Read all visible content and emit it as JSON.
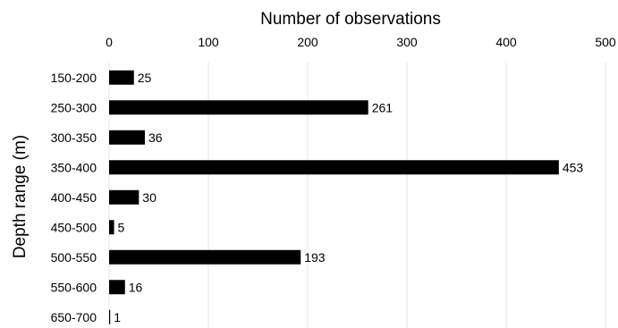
{
  "chart_data": {
    "type": "bar",
    "orientation": "horizontal",
    "title": "",
    "xlabel": "Number of observations",
    "ylabel": "Depth range (m)",
    "xaxis_position": "top",
    "xlim": [
      0,
      500
    ],
    "xticks": [
      0,
      100,
      200,
      300,
      400,
      500
    ],
    "grid": "vertical",
    "legend": "none",
    "bar_color": "#000000",
    "categories": [
      "150-200",
      "250-300",
      "300-350",
      "350-400",
      "400-450",
      "450-500",
      "500-550",
      "550-600",
      "650-700"
    ],
    "values": [
      25,
      261,
      36,
      453,
      30,
      5,
      193,
      16,
      1
    ]
  }
}
